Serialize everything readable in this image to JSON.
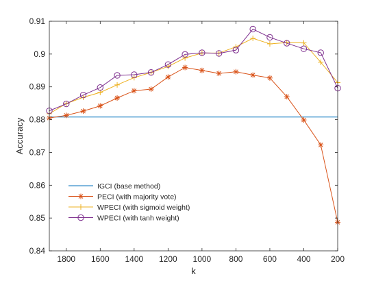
{
  "chart_data": {
    "type": "line",
    "xlabel": "k",
    "ylabel": "Accuracy",
    "xlim": [
      1900,
      200
    ],
    "ylim": [
      0.84,
      0.91
    ],
    "x_reversed": true,
    "xticks": [
      1800,
      1600,
      1400,
      1200,
      1000,
      800,
      600,
      400,
      200
    ],
    "yticks": [
      0.84,
      0.85,
      0.86,
      0.87,
      0.88,
      0.89,
      0.9,
      0.91
    ],
    "grid": false,
    "legend_position": "lower-left",
    "x": [
      1900,
      1800,
      1700,
      1600,
      1500,
      1400,
      1300,
      1200,
      1100,
      1000,
      900,
      800,
      700,
      600,
      500,
      400,
      300,
      200
    ],
    "series": [
      {
        "name": "IGCI (base method)",
        "color": "#0072BD",
        "marker": "none",
        "values": [
          0.8808,
          0.8808,
          0.8808,
          0.8808,
          0.8808,
          0.8808,
          0.8808,
          0.8808,
          0.8808,
          0.8808,
          0.8808,
          0.8808,
          0.8808,
          0.8808,
          0.8808,
          0.8808,
          0.8808,
          0.8808
        ]
      },
      {
        "name": "PECI (with majority vote)",
        "color": "#D95319",
        "marker": "asterisk",
        "values": [
          0.8805,
          0.8813,
          0.8826,
          0.8842,
          0.8866,
          0.8888,
          0.8893,
          0.893,
          0.8959,
          0.895,
          0.8941,
          0.8946,
          0.8936,
          0.8927,
          0.887,
          0.8799,
          0.8723,
          0.8487
        ]
      },
      {
        "name": "WPECI (with sigmoid weight)",
        "color": "#EDB120",
        "marker": "plus",
        "values": [
          0.8818,
          0.8849,
          0.8868,
          0.8883,
          0.8906,
          0.8928,
          0.8944,
          0.8962,
          0.8988,
          0.9003,
          0.9003,
          0.9022,
          0.9048,
          0.9031,
          0.9035,
          0.9034,
          0.8975,
          0.8913
        ]
      },
      {
        "name": "WPECI (with tanh weight)",
        "color": "#7E2F8E",
        "marker": "circle",
        "values": [
          0.8827,
          0.8848,
          0.8875,
          0.8898,
          0.8935,
          0.8937,
          0.8944,
          0.8968,
          0.8999,
          0.9004,
          0.9002,
          0.9012,
          0.9076,
          0.9051,
          0.9033,
          0.9016,
          0.9004,
          0.8896
        ]
      }
    ]
  }
}
